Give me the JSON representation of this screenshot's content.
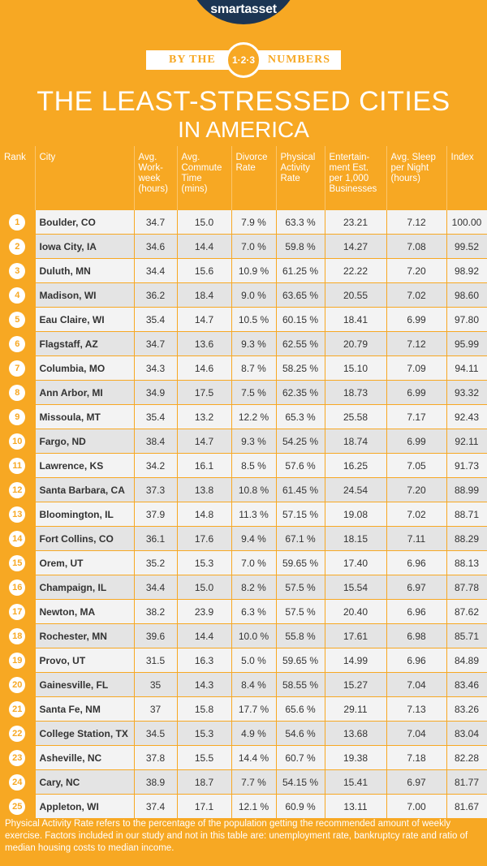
{
  "header": {
    "logo": "smartasset",
    "ribbon_left": "BY THE",
    "badge": "1·2·3",
    "ribbon_right": "NUMBERS",
    "title_line1": "THE LEAST-STRESSED CITIES",
    "title_line2": "IN AMERICA"
  },
  "table": {
    "headers": [
      "Rank",
      "City",
      "Avg. Work-week (hours)",
      "Avg. Commute Time (mins)",
      "Divorce Rate",
      "Physical Activity Rate",
      "Entertain-ment Est. per 1,000 Businesses",
      "Avg. Sleep per Night (hours)",
      "Index"
    ],
    "rows": [
      [
        "1",
        "Boulder, CO",
        "34.7",
        "15.0",
        "7.9 %",
        "63.3 %",
        "23.21",
        "7.12",
        "100.00"
      ],
      [
        "2",
        "Iowa City, IA",
        "34.6",
        "14.4",
        "7.0 %",
        "59.8 %",
        "14.27",
        "7.08",
        "99.52"
      ],
      [
        "3",
        "Duluth, MN",
        "34.4",
        "15.6",
        "10.9 %",
        "61.25 %",
        "22.22",
        "7.20",
        "98.92"
      ],
      [
        "4",
        "Madison, WI",
        "36.2",
        "18.4",
        "9.0 %",
        "63.65 %",
        "20.55",
        "7.02",
        "98.60"
      ],
      [
        "5",
        "Eau Claire, WI",
        "35.4",
        "14.7",
        "10.5 %",
        "60.15 %",
        "18.41",
        "6.99",
        "97.80"
      ],
      [
        "6",
        "Flagstaff, AZ",
        "34.7",
        "13.6",
        "9.3 %",
        "62.55 %",
        "20.79",
        "7.12",
        "95.99"
      ],
      [
        "7",
        "Columbia, MO",
        "34.3",
        "14.6",
        "8.7 %",
        "58.25 %",
        "15.10",
        "7.09",
        "94.11"
      ],
      [
        "8",
        "Ann Arbor, MI",
        "34.9",
        "17.5",
        "7.5 %",
        "62.35 %",
        "18.73",
        "6.99",
        "93.32"
      ],
      [
        "9",
        "Missoula, MT",
        "35.4",
        "13.2",
        "12.2 %",
        "65.3 %",
        "25.58",
        "7.17",
        "92.43"
      ],
      [
        "10",
        "Fargo, ND",
        "38.4",
        "14.7",
        "9.3 %",
        "54.25 %",
        "18.74",
        "6.99",
        "92.11"
      ],
      [
        "11",
        "Lawrence, KS",
        "34.2",
        "16.1",
        "8.5 %",
        "57.6 %",
        "16.25",
        "7.05",
        "91.73"
      ],
      [
        "12",
        "Santa Barbara, CA",
        "37.3",
        "13.8",
        "10.8 %",
        "61.45 %",
        "24.54",
        "7.20",
        "88.99"
      ],
      [
        "13",
        "Bloomington, IL",
        "37.9",
        "14.8",
        "11.3 %",
        "57.15 %",
        "19.08",
        "7.02",
        "88.71"
      ],
      [
        "14",
        "Fort Collins, CO",
        "36.1",
        "17.6",
        "9.4 %",
        "67.1 %",
        "18.15",
        "7.11",
        "88.29"
      ],
      [
        "15",
        "Orem, UT",
        "35.2",
        "15.3",
        "7.0 %",
        "59.65 %",
        "17.40",
        "6.96",
        "88.13"
      ],
      [
        "16",
        "Champaign, IL",
        "34.4",
        "15.0",
        "8.2 %",
        "57.5 %",
        "15.54",
        "6.97",
        "87.78"
      ],
      [
        "17",
        "Newton, MA",
        "38.2",
        "23.9",
        "6.3 %",
        "57.5 %",
        "20.40",
        "6.96",
        "87.62"
      ],
      [
        "18",
        "Rochester, MN",
        "39.6",
        "14.4",
        "10.0 %",
        "55.8 %",
        "17.61",
        "6.98",
        "85.71"
      ],
      [
        "19",
        "Provo, UT",
        "31.5",
        "16.3",
        "5.0 %",
        "59.65 %",
        "14.99",
        "6.96",
        "84.89"
      ],
      [
        "20",
        "Gainesville, FL",
        "35",
        "14.3",
        "8.4 %",
        "58.55 %",
        "15.27",
        "7.04",
        "83.46"
      ],
      [
        "21",
        "Santa Fe, NM",
        "37",
        "15.8",
        "17.7 %",
        "65.6 %",
        "29.11",
        "7.13",
        "83.26"
      ],
      [
        "22",
        "College Station, TX",
        "34.5",
        "15.3",
        "4.9 %",
        "54.6 %",
        "13.68",
        "7.04",
        "83.04"
      ],
      [
        "23",
        "Asheville, NC",
        "37.8",
        "15.5",
        "14.4 %",
        "60.7 %",
        "19.38",
        "7.18",
        "82.28"
      ],
      [
        "24",
        "Cary, NC",
        "38.9",
        "18.7",
        "7.7 %",
        "54.15 %",
        "15.41",
        "6.97",
        "81.77"
      ],
      [
        "25",
        "Appleton, WI",
        "37.4",
        "17.1",
        "12.1 %",
        "60.9 %",
        "13.11",
        "7.00",
        "81.67"
      ]
    ]
  },
  "footnote": "Physical Activity Rate refers to the percentage of the population getting the recommended amount of weekly exercise. Factors included in our study and not in this table are: unemployment rate, bankruptcy rate and ratio of median housing costs to median income."
}
